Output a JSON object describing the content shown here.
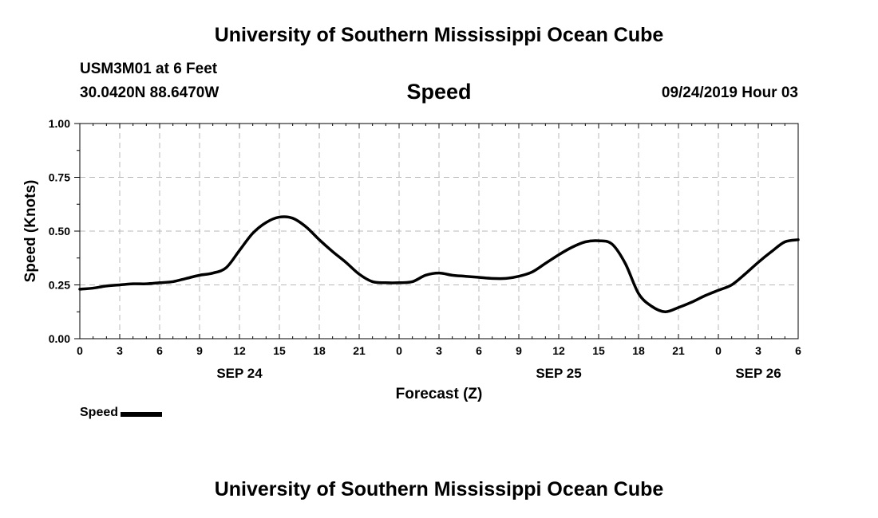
{
  "page": {
    "title": "University of Southern Mississippi Ocean Cube",
    "footer_title": "University of Southern Mississippi Ocean Cube",
    "station": "USM3M01 at 6 Feet",
    "coords": "30.0420N 88.6470W",
    "variable": "Speed",
    "datetime": "09/24/2019 Hour 03"
  },
  "chart_data": {
    "type": "line",
    "title": "Speed",
    "xlabel": "Forecast (Z)",
    "ylabel": "Speed (Knots)",
    "xlim": [
      0,
      54
    ],
    "ylim": [
      0,
      1
    ],
    "grid": true,
    "x_tick_values": [
      0,
      3,
      6,
      9,
      12,
      15,
      18,
      21,
      24,
      27,
      30,
      33,
      36,
      39,
      42,
      45,
      48,
      51,
      54
    ],
    "x_tick_labels": [
      "0",
      "3",
      "6",
      "9",
      "12",
      "15",
      "18",
      "21",
      "0",
      "3",
      "6",
      "9",
      "12",
      "15",
      "18",
      "21",
      "0",
      "3",
      "6"
    ],
    "y_tick_values": [
      0,
      0.25,
      0.5,
      0.75,
      1.0
    ],
    "y_tick_labels": [
      "0.00",
      "0.25",
      "0.50",
      "0.75",
      "1.00"
    ],
    "date_labels": [
      {
        "x": 12,
        "label": "SEP 24"
      },
      {
        "x": 36,
        "label": "SEP 25"
      },
      {
        "x": 51,
        "label": "SEP 26"
      }
    ],
    "legend": {
      "position": "bottom-left",
      "entries": [
        "Speed"
      ]
    },
    "series": [
      {
        "name": "Speed",
        "color": "#000000",
        "x": [
          0,
          1,
          2,
          3,
          4,
          5,
          6,
          7,
          8,
          9,
          10,
          11,
          12,
          13,
          14,
          15,
          16,
          17,
          18,
          19,
          20,
          21,
          22,
          23,
          24,
          25,
          26,
          27,
          28,
          29,
          30,
          31,
          32,
          33,
          34,
          35,
          36,
          37,
          38,
          39,
          40,
          41,
          42,
          43,
          44,
          45,
          46,
          47,
          48,
          49,
          50,
          51,
          52,
          53,
          54
        ],
        "values": [
          0.23,
          0.235,
          0.245,
          0.25,
          0.255,
          0.255,
          0.26,
          0.265,
          0.28,
          0.295,
          0.305,
          0.33,
          0.41,
          0.49,
          0.54,
          0.565,
          0.56,
          0.52,
          0.46,
          0.405,
          0.355,
          0.3,
          0.265,
          0.26,
          0.26,
          0.265,
          0.295,
          0.305,
          0.295,
          0.29,
          0.285,
          0.28,
          0.28,
          0.29,
          0.31,
          0.35,
          0.39,
          0.425,
          0.45,
          0.455,
          0.44,
          0.35,
          0.21,
          0.15,
          0.125,
          0.145,
          0.17,
          0.2,
          0.225,
          0.25,
          0.3,
          0.355,
          0.405,
          0.45,
          0.46
        ]
      }
    ]
  }
}
